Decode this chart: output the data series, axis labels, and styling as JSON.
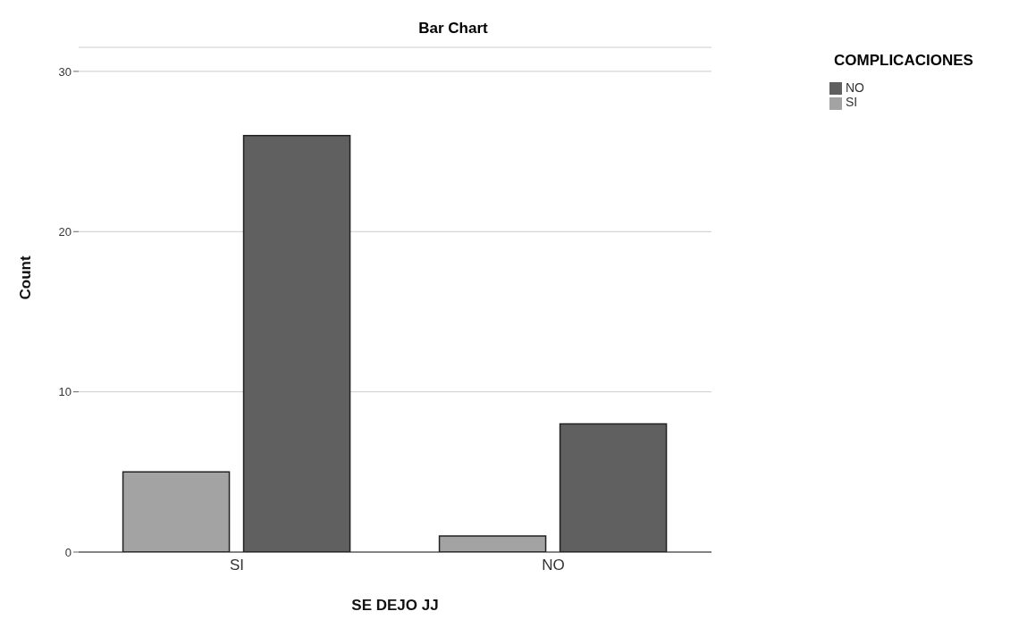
{
  "chart_data": {
    "type": "bar",
    "title": "Bar Chart",
    "xlabel": "SE DEJO JJ",
    "ylabel": "Count",
    "legend_title": "COMPLICACIONES",
    "categories": [
      "SI",
      "NO"
    ],
    "series": [
      {
        "name": "SI",
        "color": "#a3a3a3",
        "values": [
          5,
          1
        ]
      },
      {
        "name": "NO",
        "color": "#606060",
        "values": [
          26,
          8
        ]
      }
    ],
    "ylim": [
      0,
      31.5
    ],
    "yticks": [
      0,
      10,
      20,
      30
    ],
    "grid": "y",
    "legend": "top right"
  }
}
